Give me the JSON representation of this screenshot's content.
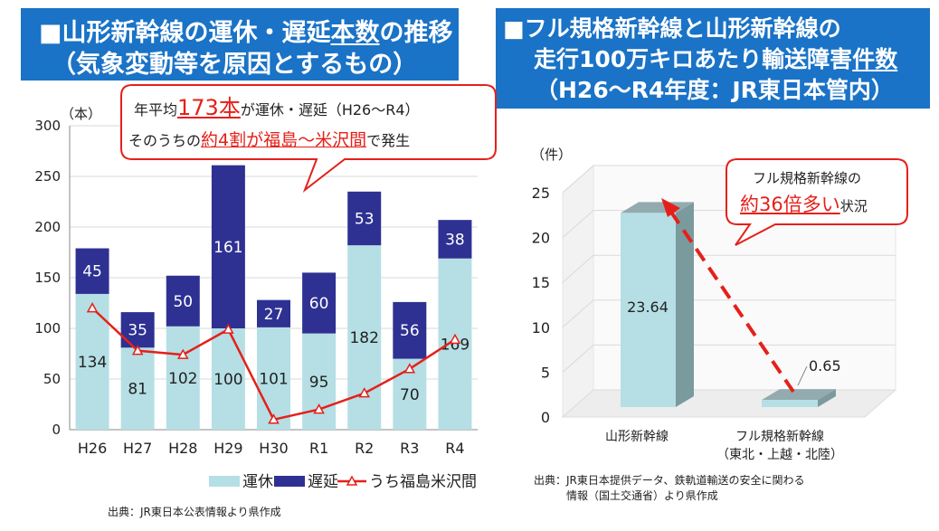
{
  "left": {
    "title_prefix": "■山形新幹線の運休・遅延",
    "title_underlined": "本数",
    "title_suffix": "の推移",
    "title_line2": "（気象変動等を原因とするもの）",
    "callout": {
      "l1_a": "年平均",
      "l1_big": "173本",
      "l1_b": "が運休・遅延（H26～R4）",
      "l2_a": "そのうちの",
      "l2_red": "約4割が福島～米沢間",
      "l2_b": "で発生"
    },
    "source": "出典：JR東日本公表情報より県作成"
  },
  "right": {
    "title_line1": "■フル規格新幹線と山形新幹線の",
    "title_line2_prefix": "走行100万キロあたり輸送障害",
    "title_line2_underlined": "件数",
    "title_line3": "（H26～R4年度：JR東日本管内）",
    "callout": {
      "l1": "フル規格新幹線の",
      "l2_red": "約36倍多い",
      "l2_b": "状況"
    },
    "source_line1": "出典：JR東日本提供データ、鉄軌道輸送の安全に関わる",
    "source_line2": "情報（国土交通省）より県作成"
  },
  "chart_data": [
    {
      "type": "bar",
      "stacked": true,
      "yunit": "（本）",
      "ylim": [
        0,
        300
      ],
      "yticks": [
        0,
        50,
        100,
        150,
        200,
        250,
        300
      ],
      "categories": [
        "H26",
        "H27",
        "H28",
        "H29",
        "H30",
        "R1",
        "R2",
        "R3",
        "R4"
      ],
      "series": [
        {
          "name": "運休",
          "color": "#b5dfe4",
          "values": [
            134,
            81,
            102,
            100,
            101,
            95,
            182,
            70,
            169
          ]
        },
        {
          "name": "遅延",
          "color": "#2e3192",
          "values": [
            45,
            35,
            50,
            161,
            27,
            60,
            53,
            56,
            38
          ]
        },
        {
          "name": "うち福島米沢間",
          "type": "line",
          "color": "#e5201a",
          "values": [
            120,
            78,
            74,
            99,
            10,
            20,
            36,
            60,
            89
          ]
        }
      ],
      "legend_position": "bottom-right"
    },
    {
      "type": "bar",
      "yunit": "（件）",
      "ylim": [
        0,
        25
      ],
      "yticks": [
        0,
        5,
        10,
        15,
        20,
        25
      ],
      "categories": [
        "山形新幹線",
        "フル規格新幹線"
      ],
      "category_sublabels": [
        "",
        "（東北・上越・北陸）"
      ],
      "values": [
        23.64,
        0.65
      ],
      "value_labels": [
        "23.64",
        "0.65"
      ],
      "color": "#b5dfe4"
    }
  ]
}
